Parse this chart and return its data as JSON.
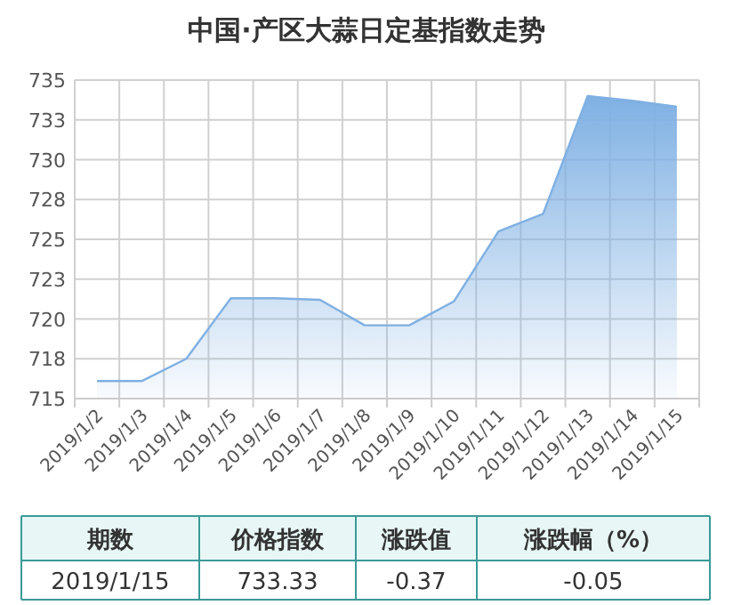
{
  "chart_data": {
    "type": "area",
    "title": "中国·产区大蒜日定基指数走势",
    "categories": [
      "2019/1/2",
      "2019/1/3",
      "2019/1/4",
      "2019/1/5",
      "2019/1/6",
      "2019/1/7",
      "2019/1/8",
      "2019/1/9",
      "2019/1/10",
      "2019/1/11",
      "2019/1/12",
      "2019/1/13",
      "2019/1/14",
      "2019/1/15"
    ],
    "series": [
      {
        "color": "#7fb0e3",
        "values": [
          716.1,
          716.1,
          717.5,
          721.3,
          721.3,
          721.2,
          719.6,
          719.6,
          721.1,
          725.5,
          726.6,
          734.0,
          733.7,
          733.33
        ]
      }
    ],
    "ylim": [
      715,
      735
    ],
    "yticks": [
      715,
      {
        "value": 717.5,
        "label": "718"
      },
      720,
      {
        "value": 722.5,
        "label": "723"
      },
      725,
      {
        "value": 727.5,
        "label": "728"
      },
      730,
      {
        "value": 732.5,
        "label": "733"
      },
      735
    ],
    "grid": true,
    "annotations": [
      "期数",
      "价格指数",
      "涨跌值",
      "涨跌幅（%）",
      "2019/1/15",
      "733.33",
      "-0.37",
      "-0.05"
    ]
  }
}
